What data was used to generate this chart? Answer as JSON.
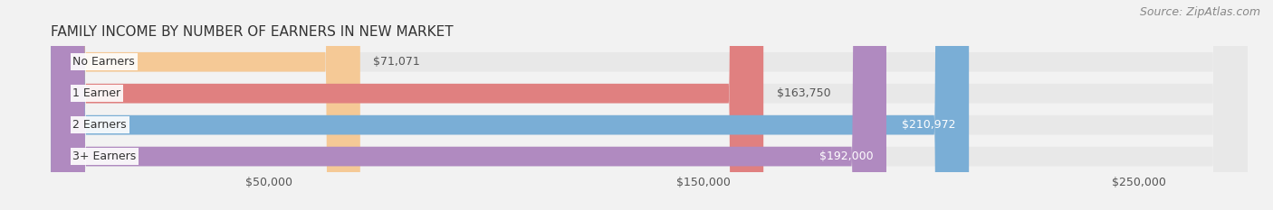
{
  "title": "FAMILY INCOME BY NUMBER OF EARNERS IN NEW MARKET",
  "source": "Source: ZipAtlas.com",
  "categories": [
    "No Earners",
    "1 Earner",
    "2 Earners",
    "3+ Earners"
  ],
  "values": [
    71071,
    163750,
    210972,
    192000
  ],
  "bar_colors": [
    "#f5c996",
    "#e08080",
    "#7aaed6",
    "#b08ac0"
  ],
  "bar_label_colors": [
    "#555555",
    "#555555",
    "#ffffff",
    "#ffffff"
  ],
  "label_format": [
    "$71,071",
    "$163,750",
    "$210,972",
    "$192,000"
  ],
  "xlim_min": 0,
  "xlim_max": 275000,
  "xticks": [
    50000,
    150000,
    250000
  ],
  "xtick_labels": [
    "$50,000",
    "$150,000",
    "$250,000"
  ],
  "background_color": "#f2f2f2",
  "bar_background_color": "#e8e8e8",
  "title_fontsize": 11,
  "source_fontsize": 9,
  "label_fontsize": 9,
  "tick_fontsize": 9
}
